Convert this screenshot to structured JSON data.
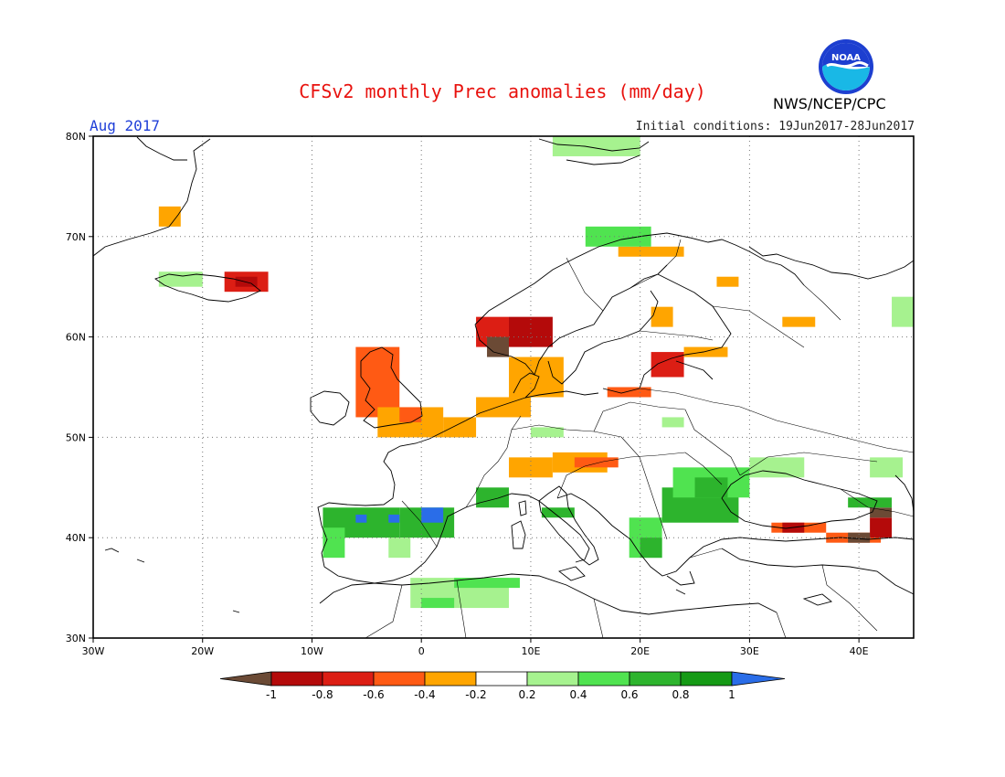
{
  "header": {
    "title": "CFSv2 monthly Prec anomalies (mm/day)",
    "month": "Aug 2017",
    "initial_conditions": "Initial conditions: 19Jun2017-28Jun2017",
    "agency": "NWS/NCEP/CPC",
    "logo_text": "NOAA"
  },
  "map": {
    "lon_range": [
      -30,
      45
    ],
    "lat_range": [
      30,
      80
    ],
    "lat_ticks": [
      "30N",
      "40N",
      "50N",
      "60N",
      "70N",
      "80N"
    ],
    "lon_ticks": [
      "30W",
      "20W",
      "10W",
      "0",
      "10E",
      "20E",
      "30E",
      "40E"
    ],
    "grid": "dotted"
  },
  "colorbar": {
    "labels": [
      "-1",
      "-0.8",
      "-0.6",
      "-0.4",
      "-0.2",
      "0.2",
      "0.4",
      "0.6",
      "0.8",
      "1"
    ],
    "colors": [
      "#6b4a35",
      "#b40a0a",
      "#dc1e14",
      "#ff5a14",
      "#ffa500",
      "#ffffff",
      "#a6f28f",
      "#50e350",
      "#2db42d",
      "#159a15",
      "#2a6de8"
    ]
  },
  "anomaly_patches": [
    {
      "lon": [
        -24,
        -22
      ],
      "lat": [
        71,
        73
      ],
      "color": "#ffa500"
    },
    {
      "lon": [
        -18,
        -14
      ],
      "lat": [
        64.5,
        66.5
      ],
      "color": "#dc1e14"
    },
    {
      "lon": [
        -17,
        -15
      ],
      "lat": [
        65,
        66
      ],
      "color": "#b40a0a"
    },
    {
      "lon": [
        -6,
        -2
      ],
      "lat": [
        52,
        59
      ],
      "color": "#ff5a14"
    },
    {
      "lon": [
        -4,
        2
      ],
      "lat": [
        50,
        53
      ],
      "color": "#ffa500"
    },
    {
      "lon": [
        -2,
        0
      ],
      "lat": [
        51.5,
        53
      ],
      "color": "#ff5a14"
    },
    {
      "lon": [
        5,
        8
      ],
      "lat": [
        59,
        62
      ],
      "color": "#dc1e14"
    },
    {
      "lon": [
        6,
        8
      ],
      "lat": [
        58,
        60
      ],
      "color": "#6b4a35"
    },
    {
      "lon": [
        8,
        12
      ],
      "lat": [
        59,
        62
      ],
      "color": "#b40a0a"
    },
    {
      "lon": [
        8,
        13
      ],
      "lat": [
        54,
        58
      ],
      "color": "#ffa500"
    },
    {
      "lon": [
        5,
        10
      ],
      "lat": [
        52,
        54
      ],
      "color": "#ffa500"
    },
    {
      "lon": [
        2,
        5
      ],
      "lat": [
        50,
        52
      ],
      "color": "#ffa500"
    },
    {
      "lon": [
        8,
        12
      ],
      "lat": [
        46,
        48
      ],
      "color": "#ffa500"
    },
    {
      "lon": [
        12,
        17
      ],
      "lat": [
        46.5,
        48.5
      ],
      "color": "#ffa500"
    },
    {
      "lon": [
        14,
        18
      ],
      "lat": [
        47,
        48
      ],
      "color": "#ff5a14"
    },
    {
      "lon": [
        17,
        21
      ],
      "lat": [
        54,
        55
      ],
      "color": "#ff5a14"
    },
    {
      "lon": [
        21,
        24
      ],
      "lat": [
        56,
        58.5
      ],
      "color": "#dc1e14"
    },
    {
      "lon": [
        24,
        28
      ],
      "lat": [
        58,
        59
      ],
      "color": "#ffa500"
    },
    {
      "lon": [
        18,
        24
      ],
      "lat": [
        68,
        69
      ],
      "color": "#ffa500"
    },
    {
      "lon": [
        21,
        23
      ],
      "lat": [
        61,
        63
      ],
      "color": "#ffa500"
    },
    {
      "lon": [
        27,
        29
      ],
      "lat": [
        65,
        66
      ],
      "color": "#ffa500"
    },
    {
      "lon": [
        33,
        36
      ],
      "lat": [
        61,
        62
      ],
      "color": "#ffa500"
    },
    {
      "lon": [
        32,
        37
      ],
      "lat": [
        40.5,
        41.5
      ],
      "color": "#ff5a14"
    },
    {
      "lon": [
        33,
        35
      ],
      "lat": [
        40.5,
        41.5
      ],
      "color": "#b40a0a"
    },
    {
      "lon": [
        37,
        42
      ],
      "lat": [
        39.5,
        40.5
      ],
      "color": "#ff5a14"
    },
    {
      "lon": [
        41,
        43
      ],
      "lat": [
        40,
        42
      ],
      "color": "#b40a0a"
    },
    {
      "lon": [
        41,
        43
      ],
      "lat": [
        42,
        43
      ],
      "color": "#6b4a35"
    },
    {
      "lon": [
        39,
        41
      ],
      "lat": [
        39.5,
        40.5
      ],
      "color": "#6b4a35"
    },
    {
      "lon": [
        -9,
        -2
      ],
      "lat": [
        40,
        43
      ],
      "color": "#2db42d"
    },
    {
      "lon": [
        -2,
        3
      ],
      "lat": [
        40,
        43
      ],
      "color": "#2db42d"
    },
    {
      "lon": [
        0,
        2
      ],
      "lat": [
        41.5,
        43
      ],
      "color": "#2a6de8"
    },
    {
      "lon": [
        -6,
        -5
      ],
      "lat": [
        41.5,
        42.3
      ],
      "color": "#2a6de8"
    },
    {
      "lon": [
        -3,
        -2
      ],
      "lat": [
        41.5,
        42.3
      ],
      "color": "#2a6de8"
    },
    {
      "lon": [
        -9,
        -7
      ],
      "lat": [
        38,
        41
      ],
      "color": "#50e350"
    },
    {
      "lon": [
        -3,
        -1
      ],
      "lat": [
        38,
        40
      ],
      "color": "#a6f28f"
    },
    {
      "lon": [
        -1,
        8
      ],
      "lat": [
        33,
        36
      ],
      "color": "#a6f28f"
    },
    {
      "lon": [
        0,
        3
      ],
      "lat": [
        33,
        34
      ],
      "color": "#50e350"
    },
    {
      "lon": [
        3,
        9
      ],
      "lat": [
        35,
        36
      ],
      "color": "#50e350"
    },
    {
      "lon": [
        5,
        8
      ],
      "lat": [
        43,
        45
      ],
      "color": "#2db42d"
    },
    {
      "lon": [
        11,
        14
      ],
      "lat": [
        42,
        43
      ],
      "color": "#2db42d"
    },
    {
      "lon": [
        19,
        22
      ],
      "lat": [
        38,
        42
      ],
      "color": "#50e350"
    },
    {
      "lon": [
        20,
        22
      ],
      "lat": [
        38,
        40
      ],
      "color": "#2db42d"
    },
    {
      "lon": [
        22,
        29
      ],
      "lat": [
        41.5,
        45
      ],
      "color": "#2db42d"
    },
    {
      "lon": [
        23,
        30
      ],
      "lat": [
        44,
        47
      ],
      "color": "#50e350"
    },
    {
      "lon": [
        25,
        28
      ],
      "lat": [
        44,
        46
      ],
      "color": "#2db42d"
    },
    {
      "lon": [
        30,
        35
      ],
      "lat": [
        46,
        48
      ],
      "color": "#a6f28f"
    },
    {
      "lon": [
        39,
        43
      ],
      "lat": [
        43,
        44
      ],
      "color": "#2db42d"
    },
    {
      "lon": [
        41,
        44
      ],
      "lat": [
        46,
        48
      ],
      "color": "#a6f28f"
    },
    {
      "lon": [
        10,
        13
      ],
      "lat": [
        50,
        51
      ],
      "color": "#a6f28f"
    },
    {
      "lon": [
        22,
        24
      ],
      "lat": [
        51,
        52
      ],
      "color": "#a6f28f"
    },
    {
      "lon": [
        -24,
        -20
      ],
      "lat": [
        65,
        66.5
      ],
      "color": "#a6f28f"
    },
    {
      "lon": [
        15,
        21
      ],
      "lat": [
        69,
        71
      ],
      "color": "#50e350"
    },
    {
      "lon": [
        12,
        20
      ],
      "lat": [
        78,
        80
      ],
      "color": "#a6f28f"
    },
    {
      "lon": [
        43,
        45
      ],
      "lat": [
        61,
        64
      ],
      "color": "#a6f28f"
    }
  ]
}
